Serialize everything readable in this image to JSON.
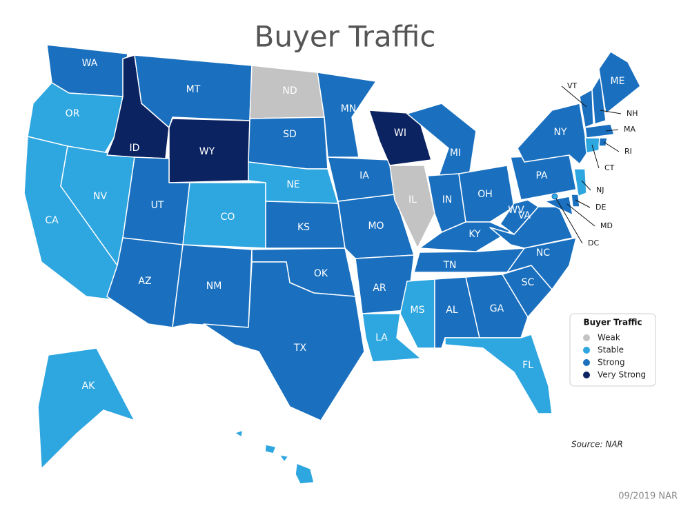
{
  "title": "Buyer Traffic",
  "legend": {
    "title": "Buyer Traffic",
    "items": [
      {
        "label": "Weak",
        "color": "#c4c3c3"
      },
      {
        "label": "Stable",
        "color": "#2ea6e0"
      },
      {
        "label": "Strong",
        "color": "#1a70bf"
      },
      {
        "label": "Very Strong",
        "color": "#0c2362"
      }
    ]
  },
  "states": [
    {
      "label": "WA",
      "category": "Strong"
    },
    {
      "label": "OR",
      "category": "Stable"
    },
    {
      "label": "CA",
      "category": "Stable"
    },
    {
      "label": "NV",
      "category": "Stable"
    },
    {
      "label": "ID",
      "category": "Very Strong"
    },
    {
      "label": "MT",
      "category": "Strong"
    },
    {
      "label": "WY",
      "category": "Very Strong"
    },
    {
      "label": "UT",
      "category": "Strong"
    },
    {
      "label": "CO",
      "category": "Stable"
    },
    {
      "label": "AZ",
      "category": "Strong"
    },
    {
      "label": "NM",
      "category": "Strong"
    },
    {
      "label": "ND",
      "category": "Weak"
    },
    {
      "label": "SD",
      "category": "Strong"
    },
    {
      "label": "NE",
      "category": "Stable"
    },
    {
      "label": "KS",
      "category": "Strong"
    },
    {
      "label": "OK",
      "category": "Strong"
    },
    {
      "label": "TX",
      "category": "Strong"
    },
    {
      "label": "MN",
      "category": "Strong"
    },
    {
      "label": "IA",
      "category": "Strong"
    },
    {
      "label": "MO",
      "category": "Strong"
    },
    {
      "label": "AR",
      "category": "Strong"
    },
    {
      "label": "LA",
      "category": "Stable"
    },
    {
      "label": "WI",
      "category": "Very Strong"
    },
    {
      "label": "IL",
      "category": "Weak"
    },
    {
      "label": "MI",
      "category": "Strong"
    },
    {
      "label": "IN",
      "category": "Strong"
    },
    {
      "label": "OH",
      "category": "Strong"
    },
    {
      "label": "KY",
      "category": "Strong"
    },
    {
      "label": "TN",
      "category": "Strong"
    },
    {
      "label": "MS",
      "category": "Stable"
    },
    {
      "label": "AL",
      "category": "Strong"
    },
    {
      "label": "GA",
      "category": "Strong"
    },
    {
      "label": "FL",
      "category": "Stable"
    },
    {
      "label": "SC",
      "category": "Strong"
    },
    {
      "label": "NC",
      "category": "Strong"
    },
    {
      "label": "VA",
      "category": "Strong"
    },
    {
      "label": "WV",
      "category": "Strong"
    },
    {
      "label": "PA",
      "category": "Strong"
    },
    {
      "label": "NY",
      "category": "Strong"
    },
    {
      "label": "VT",
      "category": "Strong"
    },
    {
      "label": "NH",
      "category": "Strong"
    },
    {
      "label": "ME",
      "category": "Strong"
    },
    {
      "label": "MA",
      "category": "Strong"
    },
    {
      "label": "CT",
      "category": "Stable"
    },
    {
      "label": "RI",
      "category": "Strong"
    },
    {
      "label": "NJ",
      "category": "Stable"
    },
    {
      "label": "DE",
      "category": "Strong"
    },
    {
      "label": "MD",
      "category": "Strong"
    },
    {
      "label": "DC",
      "category": "Stable"
    },
    {
      "label": "AK",
      "category": "Stable"
    },
    {
      "label": "HI",
      "category": "Stable"
    }
  ],
  "source": "Source: NAR",
  "date": "09/2019 NAR"
}
